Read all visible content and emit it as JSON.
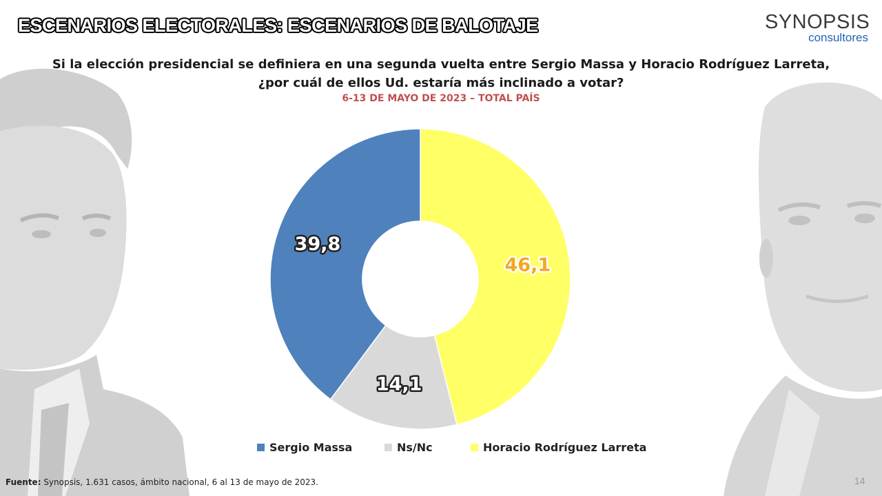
{
  "header": {
    "title": "ESCENARIOS ELECTORALES: ESCENARIOS DE BALOTAJE"
  },
  "logo": {
    "main": "SYNOPSIS",
    "sub": "consultores",
    "main_color": "#3a3a3a",
    "sub_color": "#1f63b5"
  },
  "question": {
    "line1": "Si la elección presidencial se definiera en una segunda vuelta entre Sergio Massa y Horacio Rodríguez Larreta,",
    "line2": "¿por cuál de ellos Ud. estaría más inclinado a votar?"
  },
  "subtitle": "6-13 DE MAYO DE 2023 – TOTAL PAÍS",
  "chart_data": {
    "type": "pie",
    "variant": "donut",
    "start": "top",
    "direction": "clockwise",
    "legend_position": "bottom",
    "slices": [
      {
        "name": "Horacio Rodríguez Larreta",
        "value": 46.1,
        "label": "46,1",
        "color": "#ffff66",
        "label_color": "#f5a623"
      },
      {
        "name": "Ns/Nc",
        "value": 14.1,
        "label": "14,1",
        "color": "#d9d9d9",
        "label_color": "#ffffff"
      },
      {
        "name": "Sergio Massa",
        "value": 39.8,
        "label": "39,8",
        "color": "#4f81bd",
        "label_color": "#ffffff"
      }
    ]
  },
  "legend": {
    "items": [
      {
        "label": "Sergio Massa",
        "color": "#4f81bd"
      },
      {
        "label": "Ns/Nc",
        "color": "#d9d9d9"
      },
      {
        "label": "Horacio Rodríguez Larreta",
        "color": "#ffff66"
      }
    ]
  },
  "footer": {
    "label": "Fuente:",
    "text": " Synopsis, 1.631 casos, ámbito nacional, 6 al 13 de mayo de 2023."
  },
  "page_number": "14"
}
